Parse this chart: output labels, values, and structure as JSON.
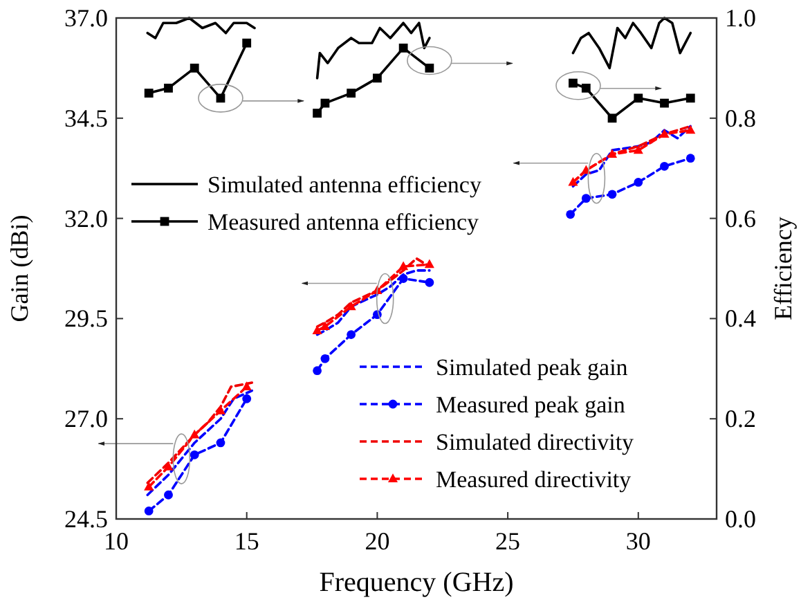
{
  "chart_data": {
    "type": "line",
    "xlabel": "Frequency (GHz)",
    "ylabel": "Gain (dBi)",
    "y2label": "Efficiency",
    "xlim": [
      10,
      33
    ],
    "xticks": [
      10,
      15,
      20,
      25,
      30
    ],
    "ylim": [
      24.5,
      37.0
    ],
    "yticks": [
      {
        "value": 24.5,
        "label": "24.5"
      },
      {
        "value": 27,
        "label": "27.0"
      },
      {
        "value": 29.5,
        "label": "29.5"
      },
      {
        "value": 32,
        "label": "32.0"
      },
      {
        "value": 34.5,
        "label": "34.5"
      },
      {
        "value": 37,
        "label": "37.0"
      }
    ],
    "y2lim": [
      0,
      1.0
    ],
    "y2ticks": [
      {
        "value": 0,
        "label": "0.0"
      },
      {
        "value": 0.2,
        "label": "0.2"
      },
      {
        "value": 0.4,
        "label": "0.4"
      },
      {
        "value": 0.6,
        "label": "0.6"
      },
      {
        "value": 0.8,
        "label": "0.8"
      },
      {
        "value": 1,
        "label": "1.0"
      }
    ],
    "grid": false,
    "legend": "bottom left",
    "series": [
      {
        "name": "Simulated antenna efficiency",
        "color": "#000000",
        "axis": "y2",
        "marker": "none",
        "line_style": "solid",
        "x": [
          11.2,
          11.5,
          11.8,
          12.3,
          12.8,
          13.3,
          13.8,
          14.2,
          14.5,
          15,
          15.3,
          17.7,
          17.8,
          18.1,
          18.5,
          19,
          19.3,
          19.8,
          20.1,
          20.5,
          21,
          21.3,
          21.6,
          21.8,
          22,
          27.5,
          27.8,
          28.1,
          28.5,
          28.9,
          29.2,
          29.5,
          29.8,
          30.1,
          30.5,
          30.8,
          31,
          31.3,
          31.6,
          32
        ],
        "values": [
          0.97,
          0.96,
          0.99,
          0.99,
          1.0,
          0.98,
          0.99,
          0.97,
          0.99,
          0.99,
          0.98,
          0.88,
          0.93,
          0.91,
          0.94,
          0.96,
          0.95,
          0.95,
          0.98,
          0.96,
          0.99,
          0.97,
          0.99,
          0.94,
          0.96,
          0.93,
          0.96,
          0.97,
          0.94,
          0.9,
          0.98,
          0.96,
          0.99,
          0.97,
          0.94,
          0.99,
          1.0,
          0.99,
          0.93,
          0.97
        ]
      },
      {
        "name": "Measured antenna efficiency",
        "color": "#000000",
        "axis": "y2",
        "marker": "square",
        "line_style": "solid",
        "x": [
          11.25,
          12,
          13,
          14,
          15,
          17.7,
          18,
          19,
          20,
          21,
          22,
          27.5,
          28,
          29,
          30,
          31,
          32
        ],
        "values": [
          0.85,
          0.86,
          0.9,
          0.84,
          0.95,
          0.81,
          0.83,
          0.85,
          0.88,
          0.94,
          0.9,
          0.87,
          0.86,
          0.8,
          0.84,
          0.83,
          0.84
        ]
      },
      {
        "name": "Simulated peak gain",
        "color": "#0000ff",
        "marker": "none",
        "line_style": "dashed",
        "x": [
          11.2,
          12,
          12.5,
          13,
          14,
          14.5,
          15.2,
          17.7,
          18,
          18.5,
          19,
          20,
          20.5,
          21,
          21.5,
          22,
          27.5,
          28,
          28.5,
          29,
          30,
          30.5,
          31,
          31.5,
          32
        ],
        "values": [
          25.1,
          25.6,
          26.0,
          26.4,
          27.0,
          27.5,
          27.7,
          29.1,
          29.2,
          29.4,
          29.8,
          30.1,
          30.3,
          30.6,
          30.7,
          30.7,
          32.8,
          33.1,
          33.2,
          33.7,
          33.8,
          33.9,
          34.2,
          34.0,
          34.3
        ]
      },
      {
        "name": "Measured peak gain",
        "color": "#0000ff",
        "marker": "circle",
        "line_style": "dashed",
        "x": [
          11.25,
          12,
          13,
          14,
          15,
          17.7,
          18,
          19,
          20,
          21,
          22,
          27.4,
          28,
          29,
          30,
          31,
          32
        ],
        "values": [
          24.7,
          25.1,
          26.1,
          26.4,
          27.5,
          28.2,
          28.5,
          29.1,
          29.6,
          30.5,
          30.4,
          32.1,
          32.5,
          32.6,
          32.9,
          33.3,
          33.5
        ]
      },
      {
        "name": "Simulated directivity",
        "color": "#f00000",
        "marker": "none",
        "line_style": "dashed",
        "x": [
          11.2,
          12,
          13,
          13.5,
          14,
          14.4,
          15.2,
          17.7,
          18,
          18.5,
          19,
          20,
          21,
          21.5,
          22,
          27.5,
          28,
          29,
          30,
          31,
          32
        ],
        "values": [
          25.4,
          25.9,
          26.6,
          26.9,
          27.3,
          27.8,
          27.9,
          29.3,
          29.4,
          29.6,
          29.9,
          30.2,
          30.7,
          31.0,
          30.8,
          32.9,
          33.2,
          33.6,
          33.8,
          34.1,
          34.3
        ]
      },
      {
        "name": "Measured directivity",
        "color": "#ff0000",
        "marker": "triangle",
        "line_style": "dashed",
        "x": [
          11.25,
          12,
          13,
          14,
          15,
          17.7,
          18,
          19,
          20,
          21,
          22,
          27.5,
          28,
          29,
          30,
          31,
          32
        ],
        "values": [
          25.3,
          25.8,
          26.6,
          27.2,
          27.8,
          29.2,
          29.3,
          29.8,
          30.2,
          30.8,
          30.85,
          32.9,
          33.2,
          33.6,
          33.7,
          34.1,
          34.2
        ]
      }
    ]
  }
}
